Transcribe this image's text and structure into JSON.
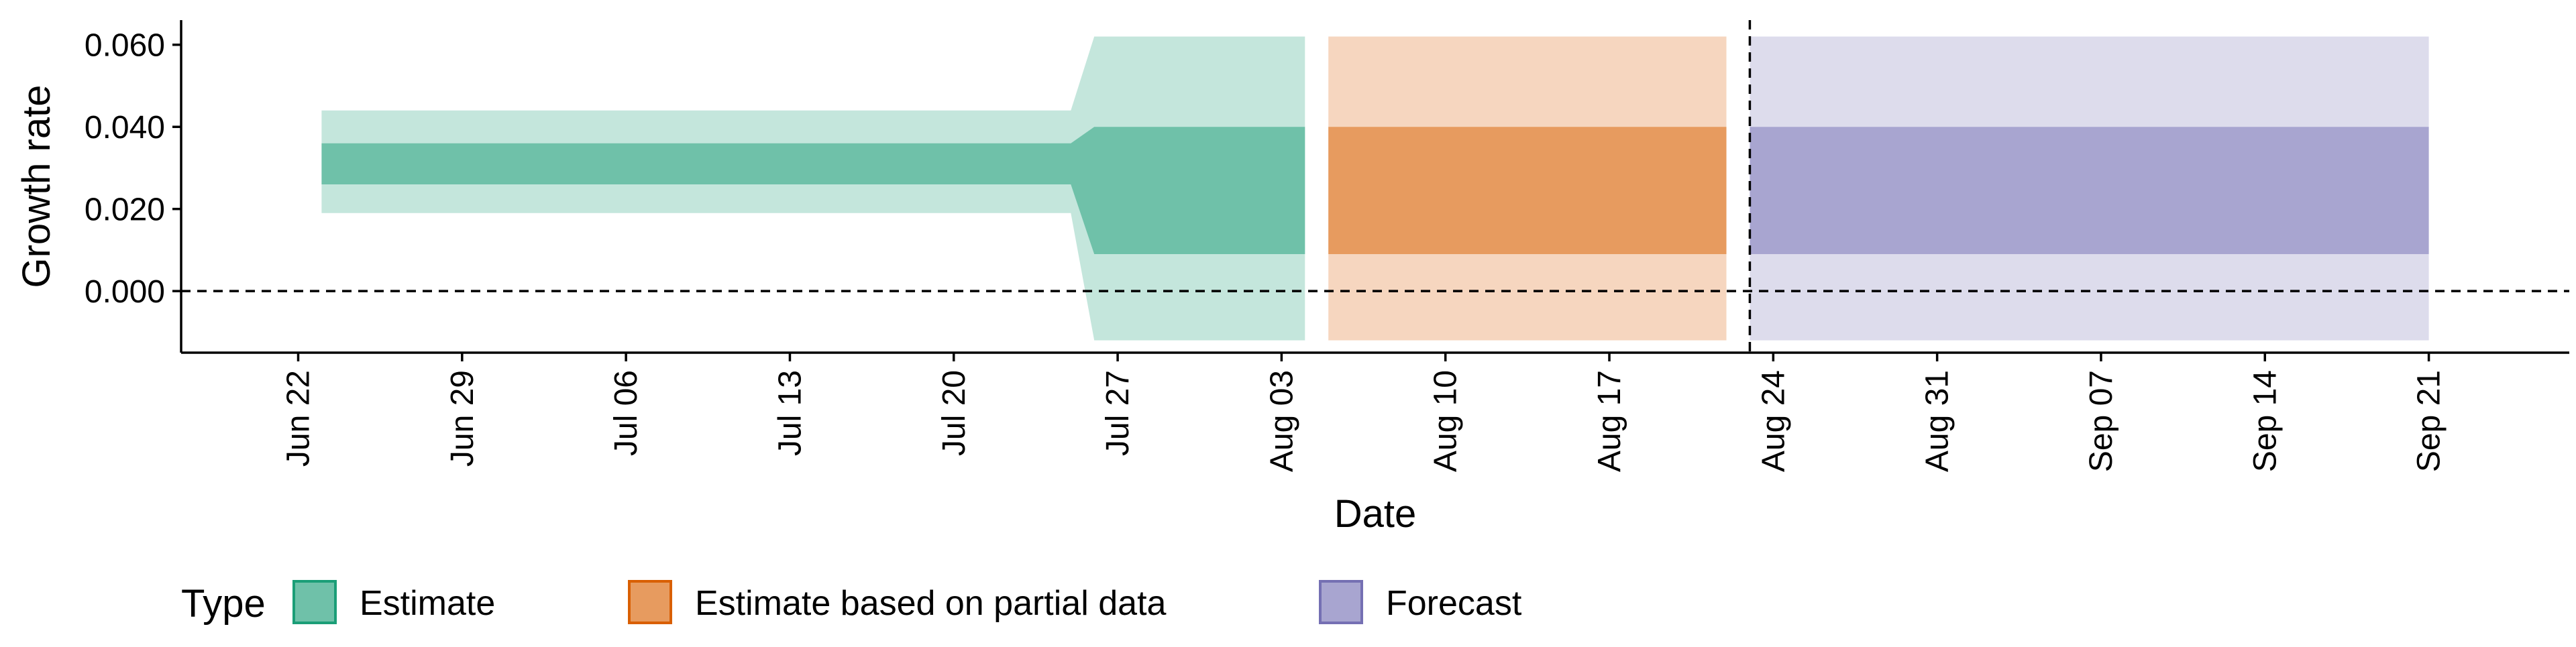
{
  "chart_data": {
    "type": "area",
    "x_axis": {
      "label": "Date",
      "range": [
        "2020-06-17",
        "2020-09-27"
      ],
      "ticks": [
        "Jun 22",
        "Jun 29",
        "Jul 06",
        "Jul 13",
        "Jul 20",
        "Jul 27",
        "Aug 03",
        "Aug 10",
        "Aug 17",
        "Aug 24",
        "Aug 31",
        "Sep 07",
        "Sep 14",
        "Sep 21"
      ],
      "tick_dates": [
        "2020-06-22",
        "2020-06-29",
        "2020-07-06",
        "2020-07-13",
        "2020-07-20",
        "2020-07-27",
        "2020-08-03",
        "2020-08-10",
        "2020-08-17",
        "2020-08-24",
        "2020-08-31",
        "2020-09-07",
        "2020-09-14",
        "2020-09-21"
      ]
    },
    "y_axis": {
      "label": "Growth rate",
      "range": [
        -0.015,
        0.066
      ],
      "ticks": [
        "0.000",
        "0.020",
        "0.040",
        "0.060"
      ],
      "tick_values": [
        0,
        0.02,
        0.04,
        0.06
      ]
    },
    "reference_lines": [
      {
        "orientation": "horizontal",
        "value": 0,
        "style": "dashed"
      },
      {
        "orientation": "vertical",
        "value": "2020-08-23",
        "style": "dashed"
      }
    ],
    "legend": {
      "title": "Type",
      "position": "bottom",
      "entries": [
        "Estimate",
        "Estimate based on partial data",
        "Forecast"
      ]
    },
    "series": [
      {
        "name": "Estimate",
        "color": "#1b9e77",
        "fill": "#6fc1a9",
        "light_fill": "#c4e6dc",
        "points": [
          {
            "date": "2020-06-23",
            "outer_low": 0.019,
            "inner_low": 0.026,
            "inner_high": 0.036,
            "outer_high": 0.044
          },
          {
            "date": "2020-07-25",
            "outer_low": 0.019,
            "inner_low": 0.026,
            "inner_high": 0.036,
            "outer_high": 0.044
          },
          {
            "date": "2020-07-26",
            "outer_low": -0.012,
            "inner_low": 0.009,
            "inner_high": 0.04,
            "outer_high": 0.062
          },
          {
            "date": "2020-08-04",
            "outer_low": -0.012,
            "inner_low": 0.009,
            "inner_high": 0.04,
            "outer_high": 0.062
          }
        ]
      },
      {
        "name": "Estimate based on partial data",
        "color": "#d95f02",
        "fill": "#e79b5f",
        "light_fill": "#f6d6bf",
        "points": [
          {
            "date": "2020-08-05",
            "outer_low": -0.012,
            "inner_low": 0.009,
            "inner_high": 0.04,
            "outer_high": 0.062
          },
          {
            "date": "2020-08-22",
            "outer_low": -0.012,
            "inner_low": 0.009,
            "inner_high": 0.04,
            "outer_high": 0.062
          }
        ]
      },
      {
        "name": "Forecast",
        "color": "#7570b3",
        "fill": "#a8a5d0",
        "light_fill": "#dddcec",
        "points": [
          {
            "date": "2020-08-23",
            "outer_low": -0.012,
            "inner_low": 0.009,
            "inner_high": 0.04,
            "outer_high": 0.062
          },
          {
            "date": "2020-09-21",
            "outer_low": -0.012,
            "inner_low": 0.009,
            "inner_high": 0.04,
            "outer_high": 0.062
          }
        ]
      }
    ]
  }
}
